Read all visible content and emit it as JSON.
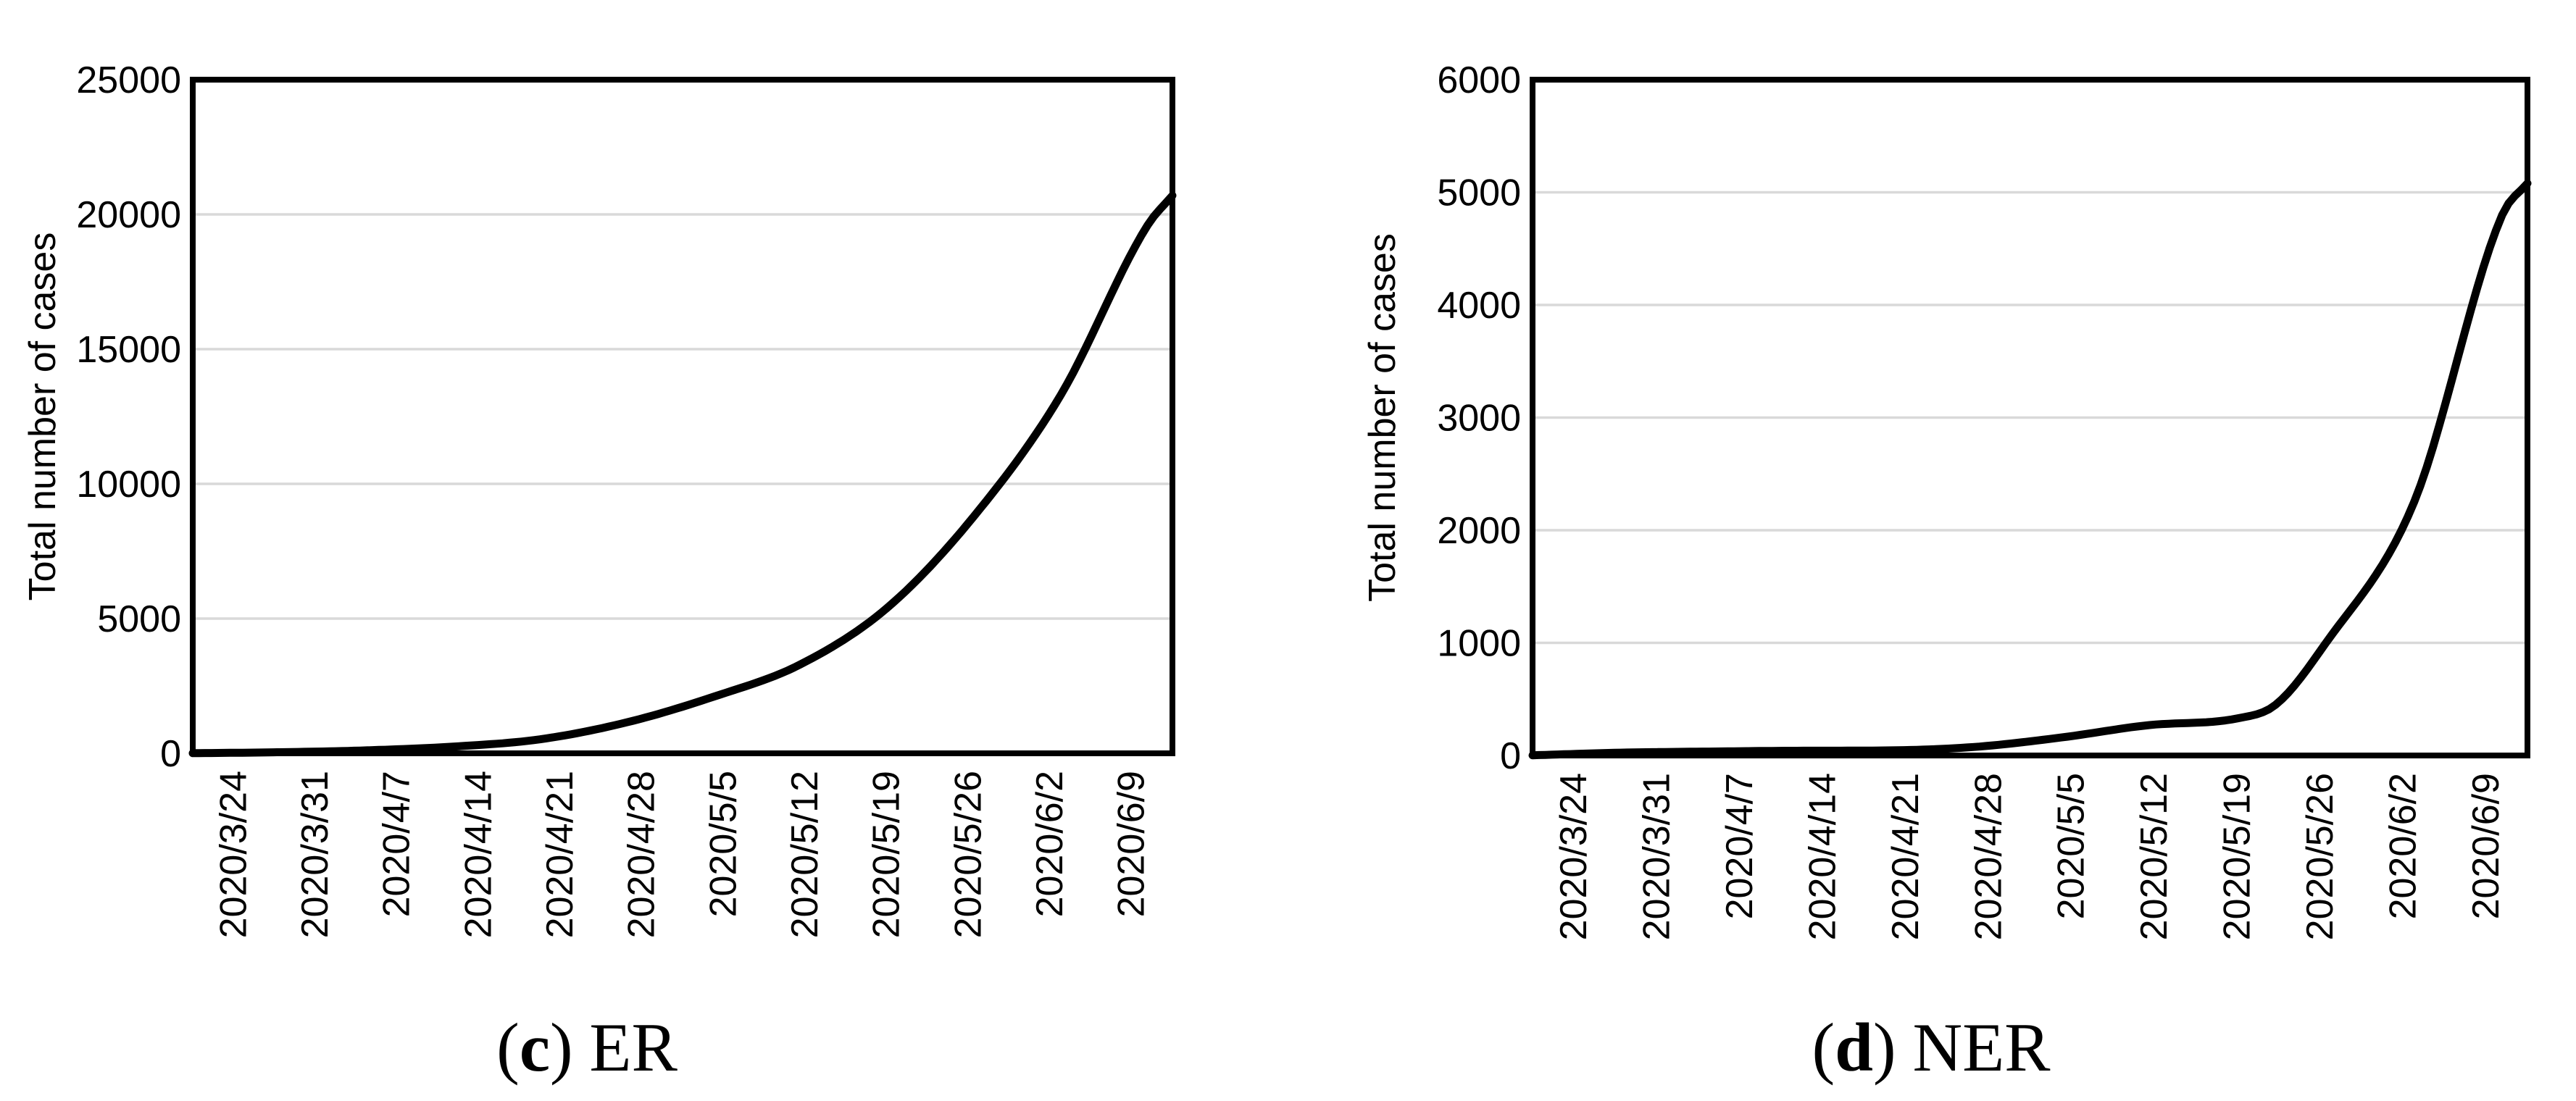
{
  "figure": {
    "background": "#ffffff",
    "text_color": "#000000",
    "grid_color": "#d9d9d9",
    "line_color": "#000000"
  },
  "chart_data": [
    {
      "type": "line",
      "caption_open": "(",
      "caption_letter": "c",
      "caption_close": ")",
      "caption_label": "ER",
      "ylabel": "Total number of cases",
      "ylim": [
        0,
        25000
      ],
      "ytick_step": 5000,
      "ytick_labels": [
        "0",
        "5000",
        "10000",
        "15000",
        "20000",
        "25000"
      ],
      "xticks": [
        "2020/3/24",
        "2020/3/31",
        "2020/4/7",
        "2020/4/14",
        "2020/4/21",
        "2020/4/28",
        "2020/5/5",
        "2020/5/12",
        "2020/5/19",
        "2020/5/26",
        "2020/6/2",
        "2020/6/9"
      ],
      "grid": "horizontal",
      "legend": "none",
      "line_color": "#000000",
      "points": [
        {
          "x": "2020/3/24",
          "y": 5
        },
        {
          "x": "2020/3/31",
          "y": 40
        },
        {
          "x": "2020/4/7",
          "y": 110
        },
        {
          "x": "2020/4/14",
          "y": 250
        },
        {
          "x": "2020/4/21",
          "y": 520
        },
        {
          "x": "2020/4/28",
          "y": 1150
        },
        {
          "x": "2020/5/5",
          "y": 2100
        },
        {
          "x": "2020/5/12",
          "y": 3300
        },
        {
          "x": "2020/5/19",
          "y": 5400
        },
        {
          "x": "2020/5/26",
          "y": 8800
        },
        {
          "x": "2020/6/2",
          "y": 13300
        },
        {
          "x": "2020/6/9",
          "y": 19600
        },
        {
          "x": "2020/6/11",
          "y": 20700
        }
      ]
    },
    {
      "type": "line",
      "caption_open": "(",
      "caption_letter": "d",
      "caption_close": ")",
      "caption_label": "NER",
      "ylabel": "Total number of cases",
      "ylim": [
        0,
        6000
      ],
      "ytick_step": 1000,
      "ytick_labels": [
        "0",
        "1000",
        "2000",
        "3000",
        "4000",
        "5000",
        "6000"
      ],
      "xticks": [
        "2020/3/24",
        "2020/3/31",
        "2020/4/7",
        "2020/4/14",
        "2020/4/21",
        "2020/4/28",
        "2020/5/5",
        "2020/5/12",
        "2020/5/19",
        "2020/5/26",
        "2020/6/2",
        "2020/6/9"
      ],
      "grid": "horizontal",
      "legend": "none",
      "line_color": "#000000",
      "points": [
        {
          "x": "2020/3/24",
          "y": 2
        },
        {
          "x": "2020/3/31",
          "y": 25
        },
        {
          "x": "2020/4/7",
          "y": 35
        },
        {
          "x": "2020/4/14",
          "y": 42
        },
        {
          "x": "2020/4/21",
          "y": 45
        },
        {
          "x": "2020/4/28",
          "y": 75
        },
        {
          "x": "2020/5/5",
          "y": 160
        },
        {
          "x": "2020/5/12",
          "y": 270
        },
        {
          "x": "2020/5/19",
          "y": 330
        },
        {
          "x": "2020/5/22",
          "y": 450
        },
        {
          "x": "2020/5/26",
          "y": 1000
        },
        {
          "x": "2020/6/2",
          "y": 2250
        },
        {
          "x": "2020/6/9",
          "y": 4800
        },
        {
          "x": "2020/6/11",
          "y": 5080
        }
      ]
    }
  ]
}
